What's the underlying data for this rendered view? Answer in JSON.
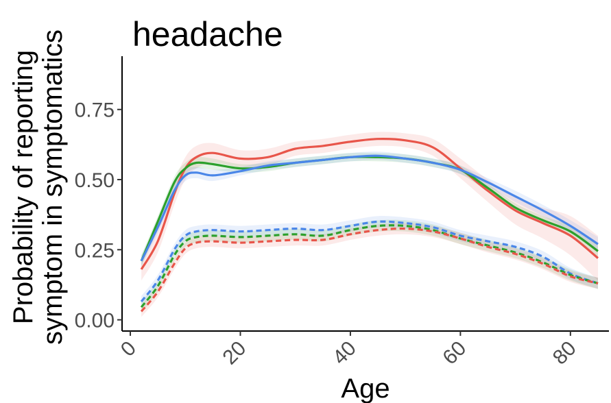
{
  "chart_data": {
    "type": "line",
    "title": "headache",
    "xlabel": "Age",
    "ylabel": [
      "Probability of reporting",
      "symptom in symptomatics"
    ],
    "xlim": [
      -1.5,
      87
    ],
    "ylim": [
      -0.04,
      0.94
    ],
    "x_ticks": [
      0,
      20,
      40,
      60,
      80
    ],
    "x_tick_labels": [
      "0",
      "20",
      "40",
      "60",
      "80"
    ],
    "y_ticks": [
      0.0,
      0.25,
      0.5,
      0.75
    ],
    "y_tick_labels": [
      "0.00",
      "0.25",
      "0.50",
      "0.75"
    ],
    "grid": false,
    "legend": "none",
    "colors": {
      "red": "#e8554a",
      "green": "#2ca02c",
      "blue": "#4a86e8"
    },
    "series": [
      {
        "color": "red",
        "style": "solid",
        "x": [
          2,
          5,
          8,
          10,
          12,
          15,
          20,
          25,
          30,
          35,
          40,
          45,
          50,
          55,
          60,
          65,
          70,
          75,
          80,
          85
        ],
        "y": [
          0.18,
          0.28,
          0.45,
          0.54,
          0.58,
          0.595,
          0.575,
          0.58,
          0.61,
          0.62,
          0.635,
          0.645,
          0.64,
          0.615,
          0.54,
          0.46,
          0.39,
          0.345,
          0.3,
          0.22
        ],
        "lower": [
          0.14,
          0.24,
          0.41,
          0.5,
          0.54,
          0.56,
          0.545,
          0.55,
          0.585,
          0.595,
          0.61,
          0.62,
          0.615,
          0.585,
          0.505,
          0.42,
          0.34,
          0.29,
          0.23,
          0.14
        ],
        "upper": [
          0.22,
          0.32,
          0.49,
          0.58,
          0.62,
          0.63,
          0.605,
          0.61,
          0.635,
          0.645,
          0.66,
          0.67,
          0.665,
          0.645,
          0.575,
          0.5,
          0.44,
          0.4,
          0.37,
          0.3
        ]
      },
      {
        "color": "green",
        "style": "solid",
        "x": [
          2,
          5,
          8,
          10,
          12,
          15,
          20,
          25,
          30,
          35,
          40,
          45,
          50,
          55,
          60,
          65,
          70,
          75,
          80,
          85
        ],
        "y": [
          0.21,
          0.35,
          0.49,
          0.54,
          0.56,
          0.555,
          0.54,
          0.545,
          0.56,
          0.57,
          0.58,
          0.58,
          0.575,
          0.56,
          0.535,
          0.47,
          0.4,
          0.355,
          0.315,
          0.245
        ],
        "lower": [
          0.19,
          0.33,
          0.47,
          0.52,
          0.54,
          0.535,
          0.525,
          0.53,
          0.545,
          0.555,
          0.565,
          0.565,
          0.56,
          0.545,
          0.52,
          0.455,
          0.385,
          0.34,
          0.295,
          0.225
        ],
        "upper": [
          0.23,
          0.37,
          0.51,
          0.56,
          0.58,
          0.575,
          0.555,
          0.56,
          0.575,
          0.585,
          0.595,
          0.595,
          0.59,
          0.575,
          0.55,
          0.485,
          0.415,
          0.37,
          0.335,
          0.265
        ]
      },
      {
        "color": "blue",
        "style": "solid",
        "x": [
          2,
          5,
          8,
          10,
          12,
          15,
          20,
          25,
          30,
          35,
          40,
          45,
          50,
          55,
          60,
          65,
          70,
          75,
          80,
          85
        ],
        "y": [
          0.21,
          0.33,
          0.46,
          0.515,
          0.525,
          0.515,
          0.53,
          0.55,
          0.56,
          0.57,
          0.58,
          0.585,
          0.575,
          0.56,
          0.535,
          0.49,
          0.44,
          0.39,
          0.335,
          0.27
        ],
        "lower": [
          0.19,
          0.31,
          0.44,
          0.495,
          0.505,
          0.495,
          0.515,
          0.535,
          0.545,
          0.555,
          0.565,
          0.57,
          0.56,
          0.545,
          0.52,
          0.475,
          0.42,
          0.37,
          0.315,
          0.245
        ],
        "upper": [
          0.23,
          0.35,
          0.48,
          0.535,
          0.545,
          0.535,
          0.545,
          0.565,
          0.575,
          0.585,
          0.595,
          0.6,
          0.59,
          0.575,
          0.55,
          0.505,
          0.46,
          0.41,
          0.355,
          0.295
        ]
      },
      {
        "color": "blue",
        "style": "dashed",
        "x": [
          2,
          5,
          8,
          10,
          12,
          15,
          20,
          25,
          30,
          35,
          40,
          45,
          50,
          55,
          60,
          65,
          70,
          75,
          80,
          85
        ],
        "y": [
          0.065,
          0.14,
          0.25,
          0.3,
          0.315,
          0.32,
          0.315,
          0.32,
          0.325,
          0.32,
          0.335,
          0.35,
          0.345,
          0.33,
          0.3,
          0.28,
          0.26,
          0.225,
          0.165,
          0.13
        ],
        "lower": [
          0.045,
          0.12,
          0.23,
          0.28,
          0.295,
          0.3,
          0.295,
          0.3,
          0.305,
          0.3,
          0.315,
          0.33,
          0.325,
          0.31,
          0.28,
          0.26,
          0.24,
          0.205,
          0.145,
          0.11
        ],
        "upper": [
          0.085,
          0.16,
          0.27,
          0.32,
          0.335,
          0.34,
          0.335,
          0.34,
          0.345,
          0.34,
          0.355,
          0.37,
          0.365,
          0.35,
          0.32,
          0.3,
          0.28,
          0.245,
          0.185,
          0.15
        ]
      },
      {
        "color": "green",
        "style": "dashed",
        "x": [
          2,
          5,
          8,
          10,
          12,
          15,
          20,
          25,
          30,
          35,
          40,
          45,
          50,
          55,
          60,
          65,
          70,
          75,
          80,
          85
        ],
        "y": [
          0.045,
          0.12,
          0.23,
          0.28,
          0.295,
          0.3,
          0.295,
          0.3,
          0.305,
          0.3,
          0.32,
          0.335,
          0.335,
          0.32,
          0.29,
          0.265,
          0.24,
          0.205,
          0.16,
          0.13
        ],
        "lower": [
          0.025,
          0.1,
          0.21,
          0.26,
          0.275,
          0.28,
          0.275,
          0.28,
          0.285,
          0.28,
          0.3,
          0.315,
          0.315,
          0.3,
          0.27,
          0.245,
          0.22,
          0.185,
          0.14,
          0.11
        ],
        "upper": [
          0.065,
          0.14,
          0.25,
          0.3,
          0.315,
          0.32,
          0.315,
          0.32,
          0.325,
          0.32,
          0.34,
          0.355,
          0.355,
          0.34,
          0.31,
          0.285,
          0.26,
          0.225,
          0.18,
          0.15
        ]
      },
      {
        "color": "red",
        "style": "dashed",
        "x": [
          2,
          5,
          8,
          10,
          12,
          15,
          20,
          25,
          30,
          35,
          40,
          45,
          50,
          55,
          60,
          65,
          70,
          75,
          80,
          85
        ],
        "y": [
          0.03,
          0.1,
          0.2,
          0.255,
          0.275,
          0.28,
          0.275,
          0.28,
          0.285,
          0.285,
          0.305,
          0.32,
          0.325,
          0.315,
          0.29,
          0.26,
          0.235,
          0.2,
          0.155,
          0.13
        ],
        "lower": [
          0.01,
          0.08,
          0.18,
          0.235,
          0.255,
          0.26,
          0.255,
          0.26,
          0.265,
          0.265,
          0.285,
          0.3,
          0.305,
          0.295,
          0.27,
          0.24,
          0.215,
          0.18,
          0.135,
          0.11
        ],
        "upper": [
          0.05,
          0.12,
          0.22,
          0.275,
          0.295,
          0.3,
          0.295,
          0.3,
          0.305,
          0.305,
          0.325,
          0.34,
          0.345,
          0.335,
          0.31,
          0.28,
          0.255,
          0.22,
          0.175,
          0.15
        ]
      }
    ]
  }
}
